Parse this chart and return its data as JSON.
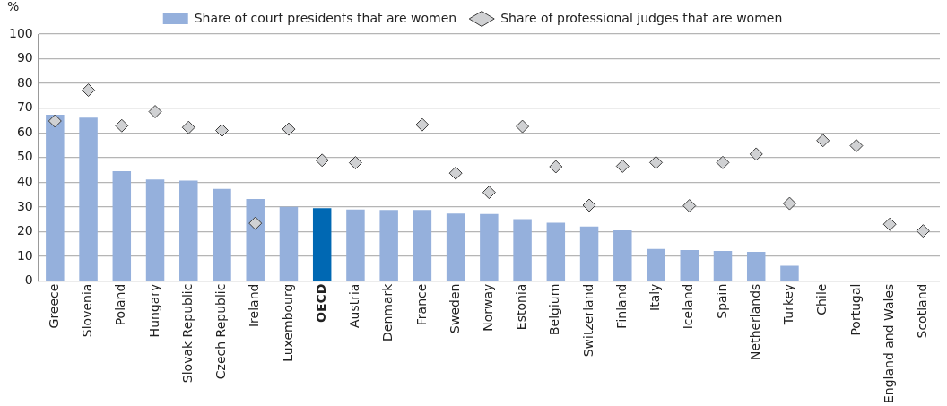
{
  "chart_data": {
    "type": "bar",
    "ylabel": "%",
    "categories": [
      "Greece",
      "Slovenia",
      "Poland",
      "Hungary",
      "Slovak Republic",
      "Czech Republic",
      "Ireland",
      "Luxembourg",
      "OECD",
      "Austria",
      "Denmark",
      "France",
      "Sweden",
      "Norway",
      "Estonia",
      "Belgium",
      "Switzerland",
      "Finland",
      "Italy",
      "Iceland",
      "Spain",
      "Netherlands",
      "Turkey",
      "Chile",
      "Portugal",
      "England and Wales",
      "Scotland"
    ],
    "series": [
      {
        "name": "Share of court presidents that are women",
        "color": "#95b0dc",
        "colors": [
          "#95b0dc",
          "#95b0dc",
          "#95b0dc",
          "#95b0dc",
          "#95b0dc",
          "#95b0dc",
          "#95b0dc",
          "#95b0dc",
          "#0068b3",
          "#95b0dc",
          "#95b0dc",
          "#95b0dc",
          "#95b0dc",
          "#95b0dc",
          "#95b0dc",
          "#95b0dc",
          "#95b0dc",
          "#95b0dc",
          "#95b0dc",
          "#95b0dc",
          "#95b0dc",
          "#95b0dc",
          "#95b0dc",
          "#95b0dc",
          "#95b0dc",
          "#95b0dc",
          "#95b0dc"
        ],
        "values": [
          67.3,
          66.2,
          44.5,
          41.1,
          40.7,
          37.3,
          33.2,
          30.1,
          29.5,
          29.0,
          28.8,
          28.8,
          27.3,
          27.2,
          25.1,
          23.6,
          22.1,
          20.5,
          13.0,
          12.6,
          12.2,
          11.8,
          6.2,
          null,
          null,
          null,
          null
        ]
      },
      {
        "name": "Share of professional judges that are women",
        "type": "scatter",
        "color": "#d0d1d3",
        "marker": "diamond",
        "values": [
          64.8,
          77.3,
          62.9,
          68.6,
          62.2,
          61.0,
          23.4,
          61.5,
          48.9,
          47.9,
          null,
          63.3,
          43.7,
          35.9,
          62.6,
          46.3,
          30.7,
          46.5,
          48.0,
          30.5,
          48.0,
          51.4,
          31.4,
          56.9,
          54.8,
          23.0,
          20.3
        ]
      }
    ],
    "ylim": [
      0,
      100
    ],
    "yticks": [
      0,
      10,
      20,
      30,
      40,
      50,
      60,
      70,
      80,
      90,
      100
    ],
    "grid": "y",
    "legend": "top"
  }
}
